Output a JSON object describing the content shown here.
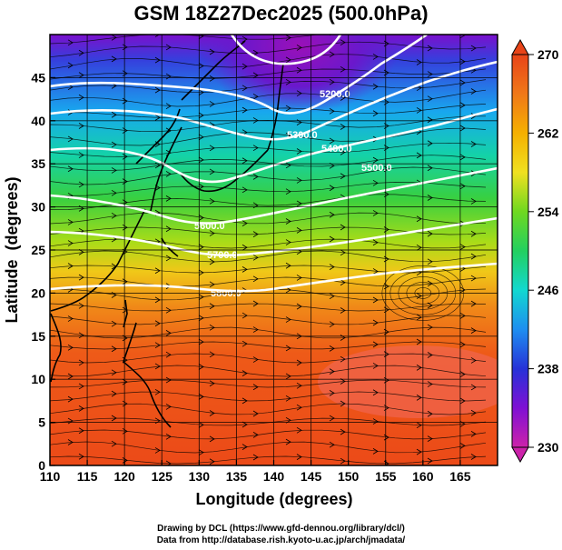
{
  "title": "GSM 18Z27Dec2025 (500.0hPa)",
  "axes": {
    "xlabel": "Longitude (degrees)",
    "ylabel": "Latitude  (degrees)",
    "xticks": [
      "110",
      "115",
      "120",
      "125",
      "130",
      "135",
      "140",
      "145",
      "150",
      "155",
      "160",
      "165"
    ],
    "yticks": [
      "0",
      "5",
      "10",
      "15",
      "20",
      "25",
      "30",
      "35",
      "40",
      "45"
    ]
  },
  "colorbar": {
    "ticks": [
      "230",
      "238",
      "246",
      "254",
      "262",
      "270"
    ],
    "min": 230,
    "max": 270
  },
  "contours": [
    {
      "label": "5200.0"
    },
    {
      "label": "5300.0"
    },
    {
      "label": "5400.0"
    },
    {
      "label": "5500.0"
    },
    {
      "label": "5600.0"
    },
    {
      "label": "5700.0"
    },
    {
      "label": "5800.0"
    }
  ],
  "credit": {
    "line1": "Drawing by DCL (https://www.gfd-dennou.org/library/dcl/)",
    "line2": "Data from http://database.rish.kyoto-u.ac.jp/arch/jmadata/"
  },
  "chart_data": {
    "type": "heatmap",
    "title": "GSM 18Z27Dec2025 (500.0hPa)",
    "xlabel": "Longitude (degrees)",
    "ylabel": "Latitude  (degrees)",
    "xlim": [
      110,
      170
    ],
    "ylim": [
      0,
      50
    ],
    "colorbar_range": [
      230,
      270
    ],
    "colorbar_ticks": [
      230,
      238,
      246,
      254,
      262,
      270
    ],
    "contour_levels": [
      5200,
      5300,
      5400,
      5500,
      5600,
      5700,
      5800
    ],
    "grid": true
  },
  "colors": {
    "cb_stops": [
      "#cc22aa",
      "#7f10d4",
      "#2632d8",
      "#1e8ef0",
      "#12d8d0",
      "#22d060",
      "#6fd820",
      "#f0e020",
      "#f5b000",
      "#f07818",
      "#e84418"
    ]
  }
}
